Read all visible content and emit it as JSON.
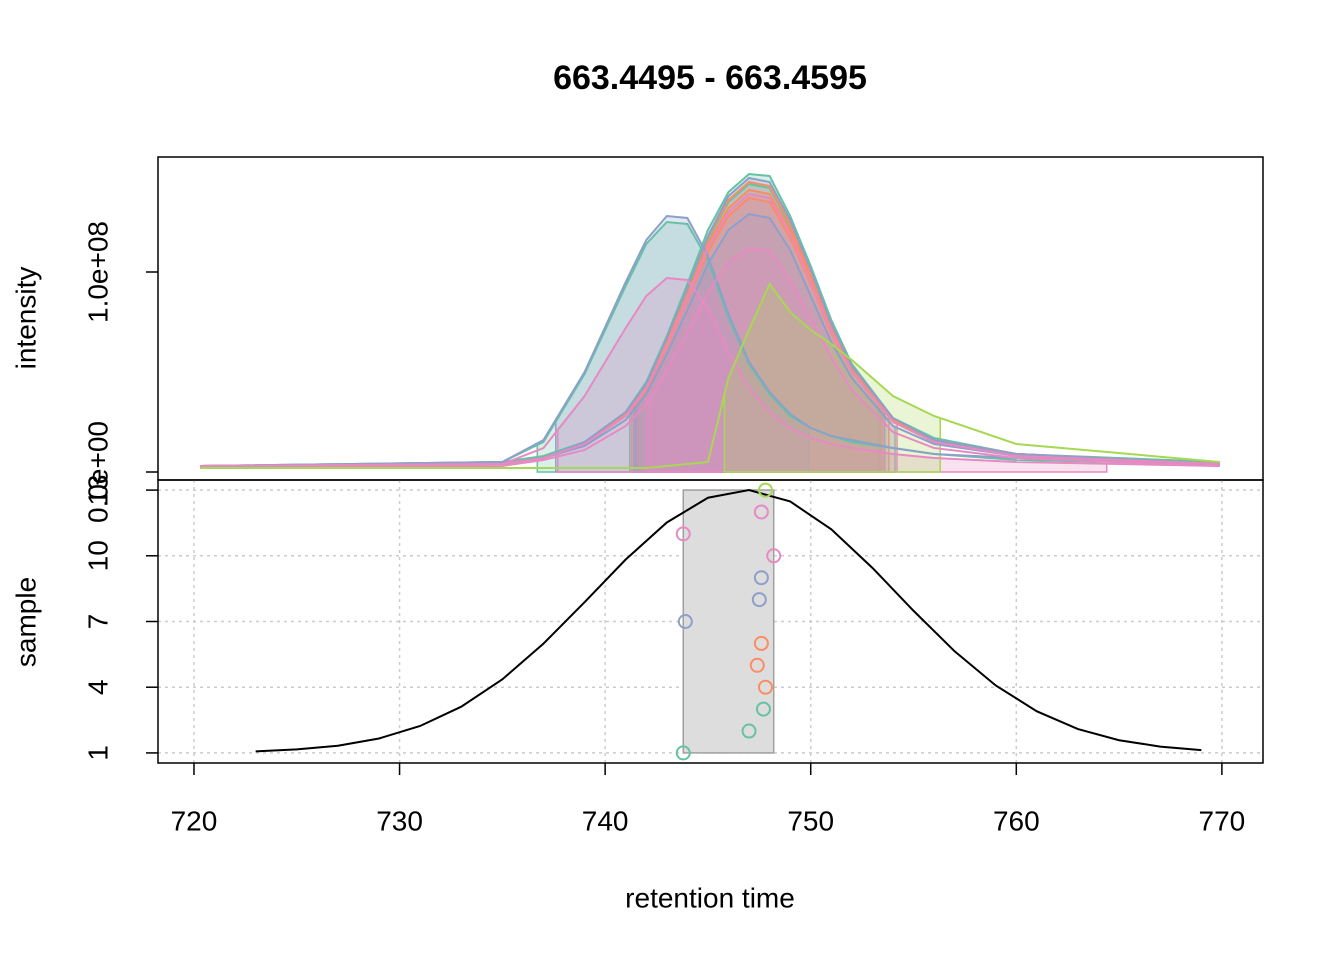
{
  "chart_data": [
    {
      "type": "line",
      "title": "663.4495 - 663.4595",
      "ylabel": "intensity",
      "xlim": [
        718.25,
        772.0
      ],
      "ylim": [
        -4000000,
        157500000
      ],
      "yticks": [
        {
          "value": 0,
          "label": "0.0e+00"
        },
        {
          "value": 100000000,
          "label": "1.0e+08"
        }
      ],
      "fill_opacity": 0.25,
      "x": [
        720.3,
        735,
        737,
        739,
        741,
        742,
        743,
        744,
        745,
        746,
        747,
        748,
        749,
        750,
        751,
        752,
        754,
        756,
        760,
        769.9
      ],
      "series": [
        {
          "color": "#66c2a5",
          "peak": [
            736.7,
            749.9
          ],
          "values": [
            3000000.0,
            5000000.0,
            15000000.0,
            49000000.0,
            93000000.0,
            114000000.0,
            125000000.0,
            124000000.0,
            106000000.0,
            77000000.0,
            54000000.0,
            39000000.0,
            28000000.0,
            22000000.0,
            18000000.0,
            15000000.0,
            12000000.0,
            9000000.0,
            6000000.0,
            4000000.0
          ]
        },
        {
          "color": "#66c2a5",
          "peak": [
            741.4,
            753.3
          ],
          "values": [
            3000000.0,
            5000000.0,
            8000000.0,
            15000000.0,
            30000000.0,
            45000000.0,
            68000000.0,
            94000000.0,
            121000000.0,
            140000000.0,
            149000000.0,
            148000000.0,
            128000000.0,
            103000000.0,
            76000000.0,
            54000000.0,
            27000000.0,
            17000000.0,
            9000000.0,
            5000000.0
          ]
        },
        {
          "color": "#66c2a5",
          "peak": [
            741.2,
            753.5
          ],
          "values": [
            3000000.0,
            4000000.0,
            7000000.0,
            15000000.0,
            29000000.0,
            44000000.0,
            65000000.0,
            90000000.0,
            116000000.0,
            135000000.0,
            144000000.0,
            142000000.0,
            123000000.0,
            99000000.0,
            73000000.0,
            52000000.0,
            26000000.0,
            16000000.0,
            9000000.0,
            4000000.0
          ]
        },
        {
          "color": "#fc8d62",
          "peak": [
            741.5,
            753.6
          ],
          "values": [
            3000000.0,
            4000000.0,
            7000000.0,
            14000000.0,
            28000000.0,
            43000000.0,
            64000000.0,
            88000000.0,
            114000000.0,
            132000000.0,
            141000000.0,
            139000000.0,
            121000000.0,
            97000000.0,
            71000000.0,
            51000000.0,
            26000000.0,
            16000000.0,
            9000000.0,
            4000000.0
          ]
        },
        {
          "color": "#fc8d62",
          "peak": [
            741.3,
            753.4
          ],
          "values": [
            3000000.0,
            4000000.0,
            7000000.0,
            14000000.0,
            29000000.0,
            44000000.0,
            66000000.0,
            91000000.0,
            117000000.0,
            136000000.0,
            145000000.0,
            143000000.0,
            124000000.0,
            99000000.0,
            73000000.0,
            53000000.0,
            26000000.0,
            16000000.0,
            9000000.0,
            4000000.0
          ]
        },
        {
          "color": "#fc8d62",
          "peak": [
            741.6,
            753.8
          ],
          "values": [
            3000000.0,
            4000000.0,
            7000000.0,
            14000000.0,
            28000000.0,
            41000000.0,
            62000000.0,
            86000000.0,
            110000000.0,
            128000000.0,
            137000000.0,
            135000000.0,
            117000000.0,
            94000000.0,
            69000000.0,
            50000000.0,
            25000000.0,
            15000000.0,
            8000000.0,
            4000000.0
          ]
        },
        {
          "color": "#8da0cb",
          "peak": [
            737.6,
            749.9
          ],
          "values": [
            3000000.0,
            5000000.0,
            16000000.0,
            50000000.0,
            95000000.0,
            116000000.0,
            128000000.0,
            127000000.0,
            108000000.0,
            79000000.0,
            55000000.0,
            40000000.0,
            29000000.0,
            22000000.0,
            18000000.0,
            16000000.0,
            12000000.0,
            9000000.0,
            7000000.0,
            4000000.0
          ]
        },
        {
          "color": "#8da0cb",
          "peak": [
            741.5,
            754.1
          ],
          "values": [
            3000000.0,
            4000000.0,
            7000000.0,
            13000000.0,
            26000000.0,
            39000000.0,
            59000000.0,
            81000000.0,
            104000000.0,
            121000000.0,
            129000000.0,
            127000000.0,
            111000000.0,
            88000000.0,
            65000000.0,
            47000000.0,
            23000000.0,
            14000000.0,
            8000000.0,
            4000000.0
          ]
        },
        {
          "color": "#8da0cb",
          "peak": [
            741.4,
            753.6
          ],
          "values": [
            3000000.0,
            4000000.0,
            7000000.0,
            15000000.0,
            30000000.0,
            44000000.0,
            67000000.0,
            92000000.0,
            118000000.0,
            138000000.0,
            147000000.0,
            145000000.0,
            126000000.0,
            101000000.0,
            74000000.0,
            53000000.0,
            27000000.0,
            16000000.0,
            9000000.0,
            4000000.0
          ]
        },
        {
          "color": "#e78ac3",
          "peak": [
            742.0,
            754.2
          ],
          "values": [
            3000000.0,
            4000000.0,
            7000000.0,
            14000000.0,
            28000000.0,
            42000000.0,
            63000000.0,
            87000000.0,
            112000000.0,
            130000000.0,
            139000000.0,
            137000000.0,
            119000000.0,
            95000000.0,
            70000000.0,
            50000000.0,
            25000000.0,
            15000000.0,
            8000000.0,
            4000000.0
          ]
        },
        {
          "color": "#e78ac3",
          "peak": [
            737.7,
            764.4
          ],
          "values": [
            2000000.0,
            4000000.0,
            12000000.0,
            38000000.0,
            72000000.0,
            88000000.0,
            97000000.0,
            96000000.0,
            82000000.0,
            60000000.0,
            42000000.0,
            30000000.0,
            22000000.0,
            17000000.0,
            14000000.0,
            12000000.0,
            9000000.0,
            7000000.0,
            5000000.0,
            3000000.0
          ]
        },
        {
          "color": "#e78ac3",
          "peak": [
            742.2,
            753.5
          ],
          "values": [
            2000000.0,
            3000000.0,
            6000000.0,
            11000000.0,
            23000000.0,
            34000000.0,
            51000000.0,
            70000000.0,
            90000000.0,
            105000000.0,
            112000000.0,
            111000000.0,
            96000000.0,
            77000000.0,
            57000000.0,
            41000000.0,
            20000000.0,
            12000000.0,
            7000000.0,
            3000000.0
          ]
        },
        {
          "color": "#a6d854",
          "peak": [
            745.8,
            756.3
          ],
          "values": [
            2000000.0,
            2000000.0,
            2000000.0,
            2000000.0,
            2000000.0,
            2000000.0,
            3000000.0,
            4000000.0,
            5000000.0,
            47000000.0,
            71000000.0,
            94000000.0,
            80000000.0,
            71000000.0,
            64000000.0,
            56000000.0,
            38000000.0,
            28000000.0,
            14000000.0,
            5000000.0
          ]
        }
      ]
    },
    {
      "type": "scatter",
      "xlabel": "retention time",
      "ylabel": "sample",
      "xlim": [
        718.25,
        772.0
      ],
      "ylim": [
        0.54,
        13.46
      ],
      "xticks": [
        720,
        730,
        740,
        750,
        760,
        770
      ],
      "yticks": [
        1,
        4,
        7,
        10,
        13
      ],
      "grid": true,
      "x": [
        743.8,
        747.0,
        747.7,
        747.8,
        747.4,
        747.6,
        743.9,
        747.5,
        747.6,
        748.2,
        743.8,
        747.6,
        747.8
      ],
      "values": [
        1,
        2,
        3,
        4,
        5,
        6,
        7,
        8,
        9,
        10,
        11,
        12,
        13
      ],
      "colors": [
        "#66c2a5",
        "#66c2a5",
        "#66c2a5",
        "#fc8d62",
        "#fc8d62",
        "#fc8d62",
        "#8da0cb",
        "#8da0cb",
        "#8da0cb",
        "#e78ac3",
        "#e78ac3",
        "#e78ac3",
        "#a6d854"
      ],
      "band": [
        743.8,
        748.2
      ],
      "band_color": "#dddddd",
      "density": {
        "color": "#000000",
        "x": [
          723,
          725,
          727,
          729,
          731,
          733,
          735,
          737,
          739,
          741,
          743,
          745,
          747,
          749,
          751,
          753,
          755,
          757,
          759,
          761,
          763,
          765,
          767,
          769
        ],
        "values": [
          1.07,
          1.16,
          1.33,
          1.66,
          2.23,
          3.11,
          4.36,
          5.99,
          7.88,
          9.83,
          11.52,
          12.65,
          13.0,
          12.48,
          11.21,
          9.45,
          7.49,
          5.64,
          4.08,
          2.9,
          2.09,
          1.58,
          1.29,
          1.13
        ]
      }
    }
  ]
}
